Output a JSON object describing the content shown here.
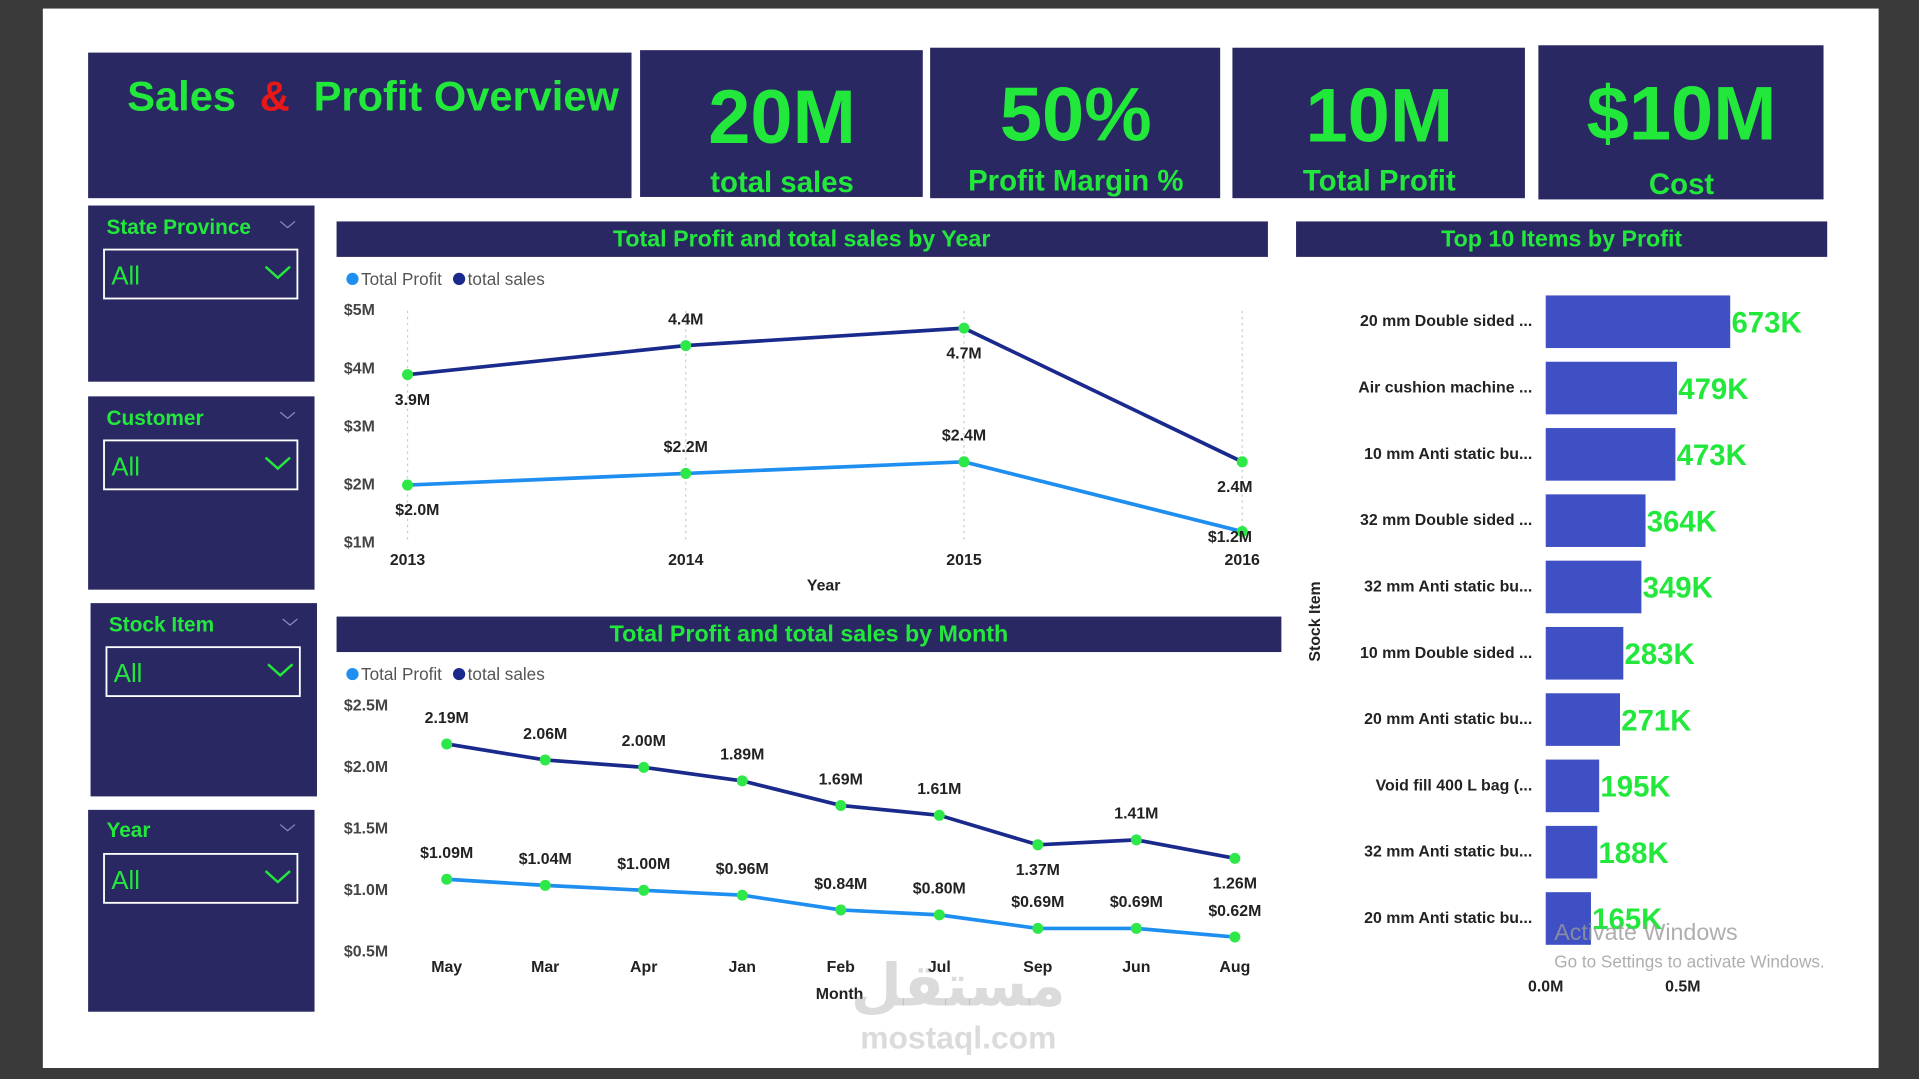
{
  "header": {
    "title_parts": [
      "Sales",
      "&",
      "Profit Overview"
    ]
  },
  "kpis": [
    {
      "value": "20M",
      "label": "total sales"
    },
    {
      "value": "50%",
      "label": "Profit Margin %"
    },
    {
      "value": "10M",
      "label": "Total Profit"
    },
    {
      "value": "$10M",
      "label": "Cost"
    }
  ],
  "filters": [
    {
      "label": "State Province",
      "value": "All"
    },
    {
      "label": "Customer",
      "value": "All"
    },
    {
      "label": "Stock Item",
      "value": "All"
    },
    {
      "label": "Year",
      "value": "All"
    }
  ],
  "chart_data": [
    {
      "type": "line",
      "title": "Total Profit and total sales by Year",
      "x_label": "Year",
      "categories": [
        "2013",
        "2014",
        "2015",
        "2016"
      ],
      "ylim": [
        1000000,
        5000000
      ],
      "yticks": [
        {
          "value": 1000000,
          "label": "$1M"
        },
        {
          "value": 2000000,
          "label": "$2M"
        },
        {
          "value": 3000000,
          "label": "$3M"
        },
        {
          "value": 4000000,
          "label": "$4M"
        },
        {
          "value": 5000000,
          "label": "$5M"
        }
      ],
      "x_grid": true,
      "series": [
        {
          "name": "Total Profit",
          "color": "#1e8ff0",
          "values": [
            2000000,
            2200000,
            2400000,
            1200000
          ],
          "value_labels": [
            "$2.0M",
            "$2.2M",
            "$2.4M",
            "$1.2M"
          ]
        },
        {
          "name": "total sales",
          "color": "#1a2a8c",
          "values": [
            3900000,
            4400000,
            4700000,
            2400000
          ],
          "value_labels": [
            "3.9M",
            "4.4M",
            "4.7M",
            "2.4M"
          ]
        }
      ]
    },
    {
      "type": "line",
      "title": "Total Profit and total sales by Month",
      "x_label": "Month",
      "categories": [
        "May",
        "Mar",
        "Apr",
        "Jan",
        "Feb",
        "Jul",
        "Sep",
        "Jun",
        "Aug"
      ],
      "ylim": [
        500000,
        2500000
      ],
      "yticks": [
        {
          "value": 500000,
          "label": "$0.5M"
        },
        {
          "value": 1000000,
          "label": "$1.0M"
        },
        {
          "value": 1500000,
          "label": "$1.5M"
        },
        {
          "value": 2000000,
          "label": "$2.0M"
        },
        {
          "value": 2500000,
          "label": "$2.5M"
        }
      ],
      "x_grid": false,
      "series": [
        {
          "name": "Total Profit",
          "color": "#1e8ff0",
          "values": [
            1090000,
            1040000,
            1000000,
            960000,
            840000,
            800000,
            690000,
            690000,
            620000
          ],
          "value_labels": [
            "$1.09M",
            "$1.04M",
            "$1.00M",
            "$0.96M",
            "$0.84M",
            "$0.80M",
            "$0.69M",
            "$0.69M",
            "$0.62M"
          ]
        },
        {
          "name": "total sales",
          "color": "#1a2a8c",
          "values": [
            2190000,
            2060000,
            2000000,
            1890000,
            1690000,
            1610000,
            1370000,
            1410000,
            1260000
          ],
          "value_labels": [
            "2.19M",
            "2.06M",
            "2.00M",
            "1.89M",
            "1.69M",
            "1.61M",
            "1.37M",
            "1.41M",
            "1.26M"
          ]
        }
      ]
    },
    {
      "type": "hbar",
      "title": "Top 10 Items by Profit",
      "y_label": "Stock Item",
      "categories": [
        "20 mm Double sided ...",
        "Air cushion machine ...",
        "10 mm Anti static bu...",
        "32 mm Double sided ...",
        "32 mm Anti static bu...",
        "10 mm Double sided ...",
        "20 mm Anti static bu...",
        "Void fill 400 L bag (...",
        "32 mm Anti static bu...",
        "20 mm Anti static bu..."
      ],
      "values": [
        673000,
        479000,
        473000,
        364000,
        349000,
        283000,
        271000,
        195000,
        188000,
        165000
      ],
      "value_labels": [
        "673K",
        "479K",
        "473K",
        "364K",
        "349K",
        "283K",
        "271K",
        "195K",
        "188K",
        "165K"
      ],
      "color": "#3f4fc4",
      "xlim": [
        0,
        1000000
      ],
      "xticks": [
        {
          "value": 0,
          "label": "0.0M"
        },
        {
          "value": 500000,
          "label": "0.5M"
        }
      ]
    }
  ],
  "overlay": {
    "activation_title": "Activate Windows",
    "activation_text": "Go to Settings to activate Windows.",
    "watermark_logo": "مستقل",
    "watermark": "mostaql.com"
  }
}
